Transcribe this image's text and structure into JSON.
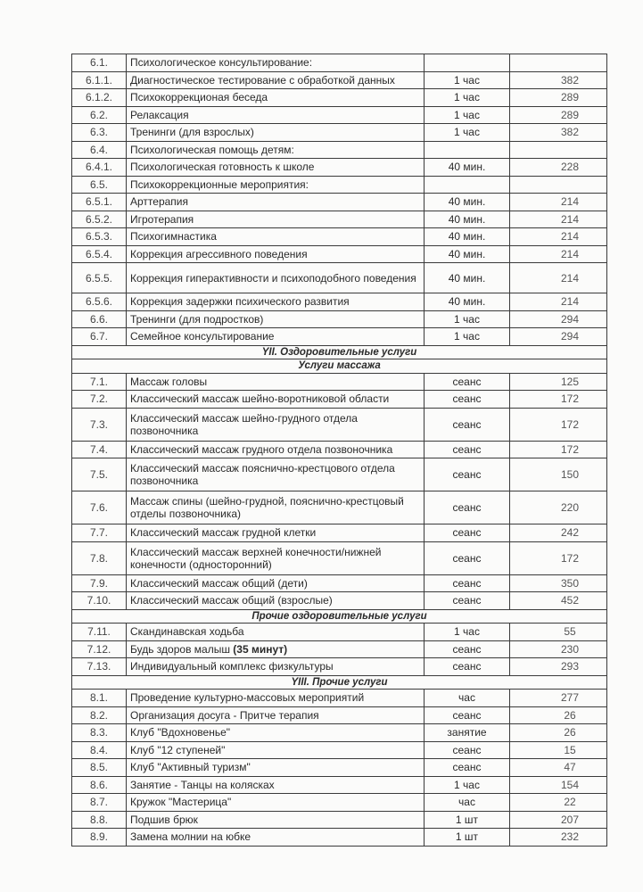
{
  "rows": [
    {
      "type": "item",
      "num": "6.1.",
      "name": "Психологическое консультирование:",
      "unit": "",
      "price": ""
    },
    {
      "type": "item",
      "num": "6.1.1.",
      "name": "Диагностическое тестирование с обработкой данных",
      "unit": "1 час",
      "price": "382"
    },
    {
      "type": "item",
      "num": "6.1.2.",
      "name": "Психокоррекционая беседа",
      "unit": "1 час",
      "price": "289"
    },
    {
      "type": "item",
      "num": "6.2.",
      "name": "Релаксация",
      "unit": "1 час",
      "price": "289"
    },
    {
      "type": "item",
      "num": "6.3.",
      "name": "Тренинги (для взрослых)",
      "unit": "1 час",
      "price": "382"
    },
    {
      "type": "item",
      "num": "6.4.",
      "name": "Психологическая помощь детям:",
      "unit": "",
      "price": ""
    },
    {
      "type": "item",
      "num": "6.4.1.",
      "name": "Психологическая готовность к школе",
      "unit": "40 мин.",
      "price": "228"
    },
    {
      "type": "item",
      "num": "6.5.",
      "name": "Психокоррекционные мероприятия:",
      "unit": "",
      "price": ""
    },
    {
      "type": "item",
      "num": "6.5.1.",
      "name": "Арттерапия",
      "unit": "40 мин.",
      "price": "214"
    },
    {
      "type": "item",
      "num": "6.5.2.",
      "name": "Игротерапия",
      "unit": "40 мин.",
      "price": "214"
    },
    {
      "type": "item",
      "num": "6.5.3.",
      "name": "Психогимнастика",
      "unit": "40 мин.",
      "price": "214"
    },
    {
      "type": "item",
      "num": "6.5.4.",
      "name": "Коррекция агрессивного поведения",
      "unit": "40 мин.",
      "price": "214"
    },
    {
      "type": "item",
      "size": "mid",
      "num": "6.5.5.",
      "name": "Коррекция гиперактивности и психоподобного поведения",
      "unit": "40 мин.",
      "price": "214"
    },
    {
      "type": "item",
      "num": "6.5.6.",
      "name": "Коррекция задержки психического развития",
      "unit": "40 мин.",
      "price": "214"
    },
    {
      "type": "item",
      "num": "6.6.",
      "name": "Тренинги (для подростков)",
      "unit": "1 час",
      "price": "294"
    },
    {
      "type": "item",
      "num": "6.7.",
      "name": "Семейное консультирование",
      "unit": "1 час",
      "price": "294"
    },
    {
      "type": "section",
      "title": "YII. Оздоровительные услуги"
    },
    {
      "type": "section",
      "title": "Услуги массажа"
    },
    {
      "type": "item",
      "num": "7.1.",
      "name": "Массаж головы",
      "unit": "сеанс",
      "price": "125"
    },
    {
      "type": "item",
      "num": "7.2.",
      "name": "Классический массаж шейно-воротниковой области",
      "unit": "сеанс",
      "price": "172"
    },
    {
      "type": "item",
      "size": "tall",
      "num": "7.3.",
      "name": "Классический массаж шейно-грудного отдела позвоночника",
      "unit": "сеанс",
      "price": "172"
    },
    {
      "type": "item",
      "num": "7.4.",
      "name": "Классический массаж грудного отдела позвоночника",
      "unit": "сеанс",
      "price": "172"
    },
    {
      "type": "item",
      "size": "tall",
      "num": "7.5.",
      "name": "Классический массаж пояснично-крестцового отдела позвоночника",
      "unit": "сеанс",
      "price": "150"
    },
    {
      "type": "item",
      "size": "tall",
      "num": "7.6.",
      "name": "Массаж спины (шейно-грудной, пояснично-крестцовый отделы позвоночника)",
      "unit": "сеанс",
      "price": "220"
    },
    {
      "type": "item",
      "num": "7.7.",
      "name": "Классический массаж грудной клетки",
      "unit": "сеанс",
      "price": "242"
    },
    {
      "type": "item",
      "size": "tall",
      "num": "7.8.",
      "name": "Классический массаж верхней конечности/нижней конечности (односторонний)",
      "unit": "сеанс",
      "price": "172"
    },
    {
      "type": "item",
      "num": "7.9.",
      "name": "Классический массаж общий (дети)",
      "unit": "сеанс",
      "price": "350"
    },
    {
      "type": "item",
      "num": "7.10.",
      "name": "Классический массаж общий (взрослые)",
      "unit": "сеанс",
      "price": "452"
    },
    {
      "type": "section",
      "title": "Прочие оздоровительные услуги"
    },
    {
      "type": "item",
      "num": "7.11.",
      "name": "Скандинавская ходьба",
      "unit": "1 час",
      "price": "55"
    },
    {
      "type": "item",
      "num": "7.12.",
      "name": "Будь здоров малыш ",
      "name_bold": "(35 минут)",
      "unit": "сеанс",
      "price": "230"
    },
    {
      "type": "item",
      "num": "7.13.",
      "name": "Индивидуальный комплекс физкультуры",
      "unit": "сеанс",
      "price": "293"
    },
    {
      "type": "section",
      "title": "YIII. Прочие услуги"
    },
    {
      "type": "item",
      "num": "8.1.",
      "name": "Проведение культурно-массовых мероприятий",
      "unit": "час",
      "price": "277"
    },
    {
      "type": "item",
      "num": "8.2.",
      "name": "Организация досуга  - Притче терапия",
      "unit": "сеанс",
      "price": "26"
    },
    {
      "type": "item",
      "num": "8.3.",
      "name": "Клуб \"Вдохновенье\"",
      "unit": "занятие",
      "price": "26"
    },
    {
      "type": "item",
      "num": "8.4.",
      "name": "Клуб \"12 ступеней\"",
      "unit": "сеанс",
      "price": "15"
    },
    {
      "type": "item",
      "num": "8.5.",
      "name": "Клуб \"Активный туризм\"",
      "unit": "сеанс",
      "price": "47"
    },
    {
      "type": "item",
      "num": "8.6.",
      "name": "Занятие - Танцы на колясках",
      "unit": "1 час",
      "price": "154"
    },
    {
      "type": "item",
      "num": "8.7.",
      "name": "Кружок \"Мастерица\"",
      "unit": "час",
      "price": "22"
    },
    {
      "type": "item",
      "num": "8.8.",
      "name": "Подшив брюк",
      "unit": "1 шт",
      "price": "207"
    },
    {
      "type": "item",
      "num": "8.9.",
      "name": "Замена молнии на юбке",
      "unit": "1 шт",
      "price": "232"
    }
  ]
}
